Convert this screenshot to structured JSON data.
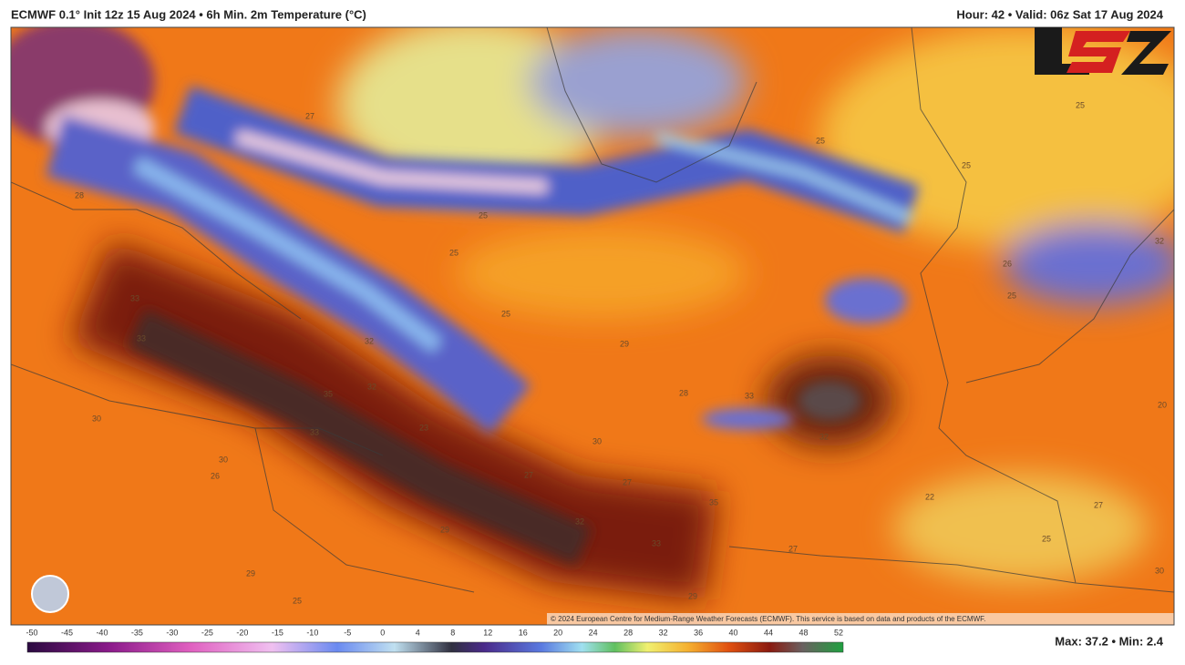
{
  "header": {
    "left": "ECMWF 0.1° Init 12z 15 Aug 2024 • 6h Min. 2m Temperature (°C)",
    "right": "Hour: 42 • Valid: 06z Sat 17 Aug 2024"
  },
  "map": {
    "credit": "© 2024 European Centre for Medium-Range Weather Forecasts (ECMWF). This service is based on data and products of the ECMWF.",
    "labels": [
      25,
      25,
      25,
      26,
      25,
      27,
      25,
      25,
      25,
      28,
      29,
      33,
      33,
      32,
      35,
      32,
      30,
      30,
      26,
      33,
      23,
      27,
      30,
      27,
      28,
      33,
      32,
      32,
      33,
      35,
      29,
      29,
      25,
      29,
      27,
      22,
      27,
      25,
      30,
      20,
      32
    ]
  },
  "colorbar": {
    "ticks": [
      -50,
      -45,
      -40,
      -35,
      -30,
      -25,
      -20,
      -15,
      -10,
      -5,
      0,
      4,
      8,
      12,
      16,
      20,
      24,
      28,
      32,
      36,
      40,
      44,
      48,
      52
    ]
  },
  "footer": {
    "stats": "Max: 37.2 • Min: 2.4"
  }
}
